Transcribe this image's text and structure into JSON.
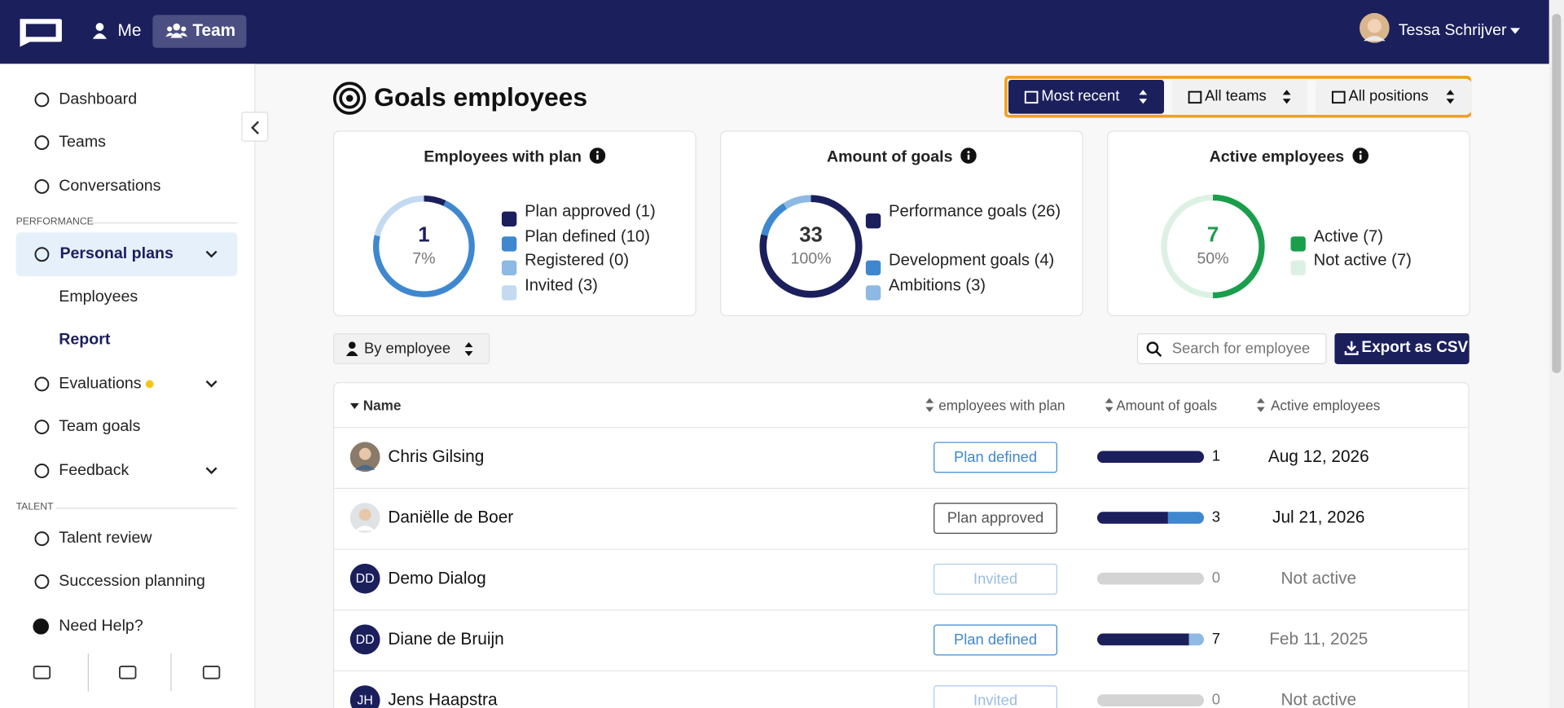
{
  "top_nav": {
    "tabs": [
      "Me",
      "Team"
    ],
    "user_name": "Tessa Schrijver"
  },
  "sidebar": {
    "items": [
      "Dashboard",
      "Teams",
      "Conversations"
    ],
    "section_performance": "PERFORMANCE",
    "performance_items": [
      "Personal plans",
      "Employees",
      "Report",
      "Evaluations",
      "Team goals",
      "Feedback"
    ],
    "section_talent": "TALENT",
    "talent_items": [
      "Talent review",
      "Succession planning"
    ],
    "help": "Need Help?"
  },
  "header": {
    "title": "Goals employees",
    "filters": [
      "Most recent",
      "All teams",
      "All positions"
    ]
  },
  "cards": [
    {
      "title": "Employees with plan",
      "center_value": 1,
      "center_label": "7%",
      "center_color": "#1b1f5c",
      "legend": [
        {
          "label": "Plan approved (1)",
          "value": 1,
          "color": "#1b1f5c"
        },
        {
          "label": "Plan defined (10)",
          "value": 10,
          "color": "#3f88d0"
        },
        {
          "label": "Registered (0)",
          "value": 0,
          "color": "#8db9e4"
        },
        {
          "label": "Invited (3)",
          "value": 3,
          "color": "#c3daf1"
        }
      ]
    },
    {
      "title": "Amount of goals",
      "center_value": 33,
      "center_label": "100%",
      "center_color": "#333333",
      "legend": [
        {
          "label": "Performance goals (26)",
          "value": 26,
          "color": "#1b1f5c"
        },
        {
          "label": "Development goals (4)",
          "value": 4,
          "color": "#3f88d0"
        },
        {
          "label": "Ambitions (3)",
          "value": 3,
          "color": "#8db9e4"
        }
      ]
    },
    {
      "title": "Active employees",
      "center_value": 7,
      "center_label": "50%",
      "center_color": "#1a9e4b",
      "legend": [
        {
          "label": "Active (7)",
          "value": 7,
          "color": "#1a9e4b"
        },
        {
          "label": "Not active (7)",
          "value": 7,
          "color": "#dcf1e3"
        }
      ]
    }
  ],
  "toolbar": {
    "group_by": "By employee",
    "search_placeholder": "Search for employee",
    "export": "Export as CSV"
  },
  "table": {
    "columns": [
      "Name",
      "employees with plan",
      "Amount of goals",
      "Active employees"
    ],
    "rows": [
      {
        "name": "Chris Gilsing",
        "status": "Plan defined",
        "goals": 1,
        "goal_segments": [
          {
            "value": 1,
            "color": "#1b1f5c"
          }
        ],
        "active": "Aug 12, 2026"
      },
      {
        "name": "Daniëlle de Boer",
        "status": "Plan approved",
        "goals": 3,
        "goal_segments": [
          {
            "value": 2,
            "color": "#1b1f5c"
          },
          {
            "value": 1,
            "color": "#3f88d0"
          }
        ],
        "active": "Jul 21, 2026"
      },
      {
        "name": "Demo Dialog",
        "initials": "DD",
        "status": "Invited",
        "goals": 0,
        "goal_segments": [],
        "active": "Not active"
      },
      {
        "name": "Diane de Bruijn",
        "initials": "DD",
        "status": "Plan defined",
        "goals": 7,
        "goal_segments": [
          {
            "value": 6,
            "color": "#1b1f5c"
          },
          {
            "value": 1,
            "color": "#8db9e4"
          }
        ],
        "active": "Feb 11, 2025"
      },
      {
        "name": "Jens Haapstra",
        "initials": "JH",
        "status": "Invited",
        "goals": 0,
        "goal_segments": [],
        "active": "Not active"
      }
    ]
  }
}
